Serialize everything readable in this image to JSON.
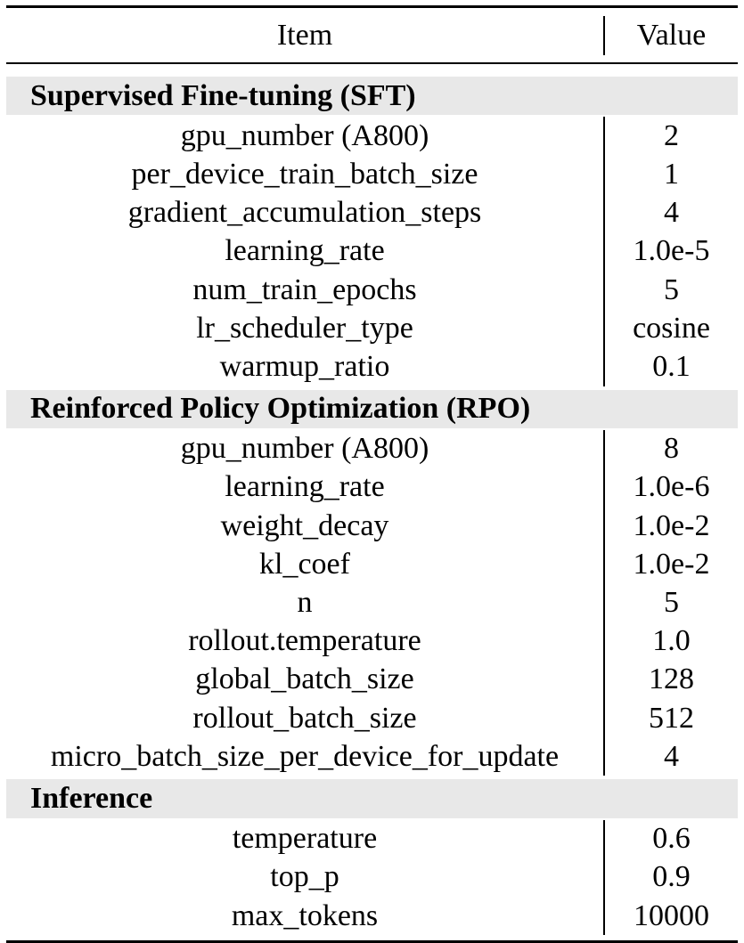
{
  "header": {
    "item": "Item",
    "value": "Value"
  },
  "sections": [
    {
      "title": "Supervised Fine-tuning (SFT)",
      "rows": [
        {
          "item": "gpu_number (A800)",
          "value": "2"
        },
        {
          "item": "per_device_train_batch_size",
          "value": "1"
        },
        {
          "item": "gradient_accumulation_steps",
          "value": "4"
        },
        {
          "item": "learning_rate",
          "value": "1.0e-5"
        },
        {
          "item": "num_train_epochs",
          "value": "5"
        },
        {
          "item": "lr_scheduler_type",
          "value": "cosine"
        },
        {
          "item": "warmup_ratio",
          "value": "0.1"
        }
      ]
    },
    {
      "title": "Reinforced Policy Optimization (RPO)",
      "rows": [
        {
          "item": "gpu_number (A800)",
          "value": "8"
        },
        {
          "item": "learning_rate",
          "value": "1.0e-6"
        },
        {
          "item": "weight_decay",
          "value": "1.0e-2"
        },
        {
          "item": "kl_coef",
          "value": "1.0e-2"
        },
        {
          "item": "n",
          "value": "5"
        },
        {
          "item": "rollout.temperature",
          "value": "1.0"
        },
        {
          "item": "global_batch_size",
          "value": "128"
        },
        {
          "item": "rollout_batch_size",
          "value": "512"
        },
        {
          "item": "micro_batch_size_per_device_for_update",
          "value": "4"
        }
      ]
    },
    {
      "title": "Inference",
      "rows": [
        {
          "item": "temperature",
          "value": "0.6"
        },
        {
          "item": "top_p",
          "value": "0.9"
        },
        {
          "item": "max_tokens",
          "value": "10000"
        }
      ]
    }
  ]
}
